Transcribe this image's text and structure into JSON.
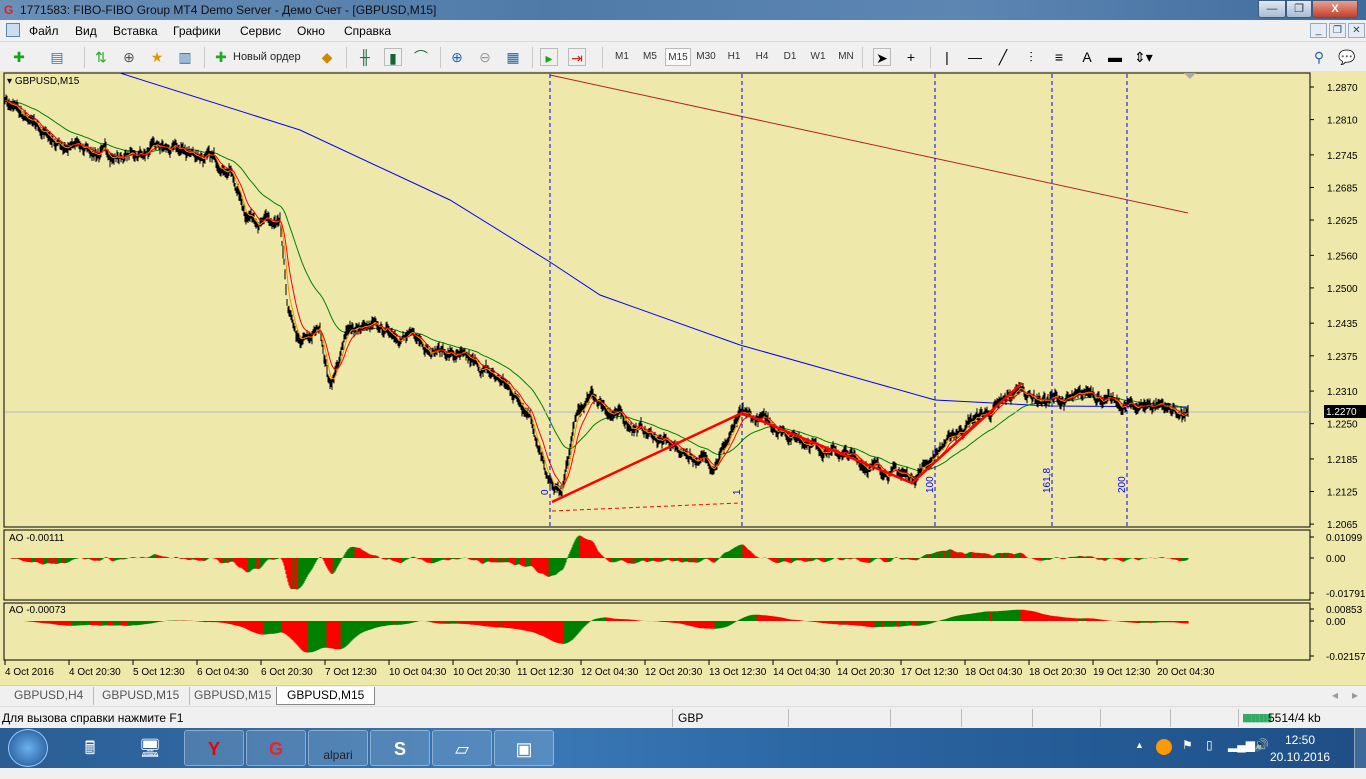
{
  "window": {
    "title": "1771583: FIBO-FIBO Group MT4 Demo Server - Демо Счет - [GBPUSD,M15]",
    "minimize": "—",
    "restore": "❐",
    "close": "X"
  },
  "menu": {
    "items": [
      "Файл",
      "Вид",
      "Вставка",
      "Графики",
      "Сервис",
      "Окно",
      "Справка"
    ]
  },
  "toolbar": {
    "new_order": "Новый ордер",
    "timeframes": [
      "M1",
      "M5",
      "M15",
      "M30",
      "H1",
      "H4",
      "D1",
      "W1",
      "MN"
    ],
    "selected_timeframe": "M15"
  },
  "chart": {
    "symbol_label": "GBPUSD,M15",
    "current_price": "1.2270",
    "ao1_label": "AO -0.00111",
    "ao2_label": "AO -0.00073",
    "ao1_axis": [
      "0.01099",
      "0.00",
      "-0.01791"
    ],
    "ao2_axis": [
      "0.00853",
      "0.00",
      "-0.02157"
    ],
    "fibo_labels": [
      "0",
      "1",
      "100",
      "161,8",
      "200"
    ],
    "colors": {
      "background": "#eee8aa",
      "bull_ao": "#008000",
      "bear_ao": "#ff0000",
      "ma_slow": "#0000ff",
      "ma_mid": "#008000",
      "ma_fast": "#ff0000",
      "zigzag": "#ff0000",
      "fibo_lines": "#0000ff"
    }
  },
  "chart_data": {
    "type": "candlestick",
    "price_ticks": [
      "1.2870",
      "1.2810",
      "1.2745",
      "1.2685",
      "1.2625",
      "1.2560",
      "1.2500",
      "1.2435",
      "1.2375",
      "1.2310",
      "1.2250",
      "1.2185",
      "1.2125",
      "1.2065"
    ],
    "time_ticks": [
      "4 Oct 2016",
      "4 Oct 20:30",
      "5 Oct 12:30",
      "6 Oct 04:30",
      "6 Oct 20:30",
      "7 Oct 12:30",
      "10 Oct 04:30",
      "10 Oct 20:30",
      "11 Oct 12:30",
      "12 Oct 04:30",
      "12 Oct 20:30",
      "13 Oct 12:30",
      "14 Oct 04:30",
      "14 Oct 20:30",
      "17 Oct 12:30",
      "18 Oct 04:30",
      "18 Oct 20:30",
      "19 Oct 12:30",
      "20 Oct 04:30"
    ],
    "last_price": 1.227
  },
  "tabs": [
    "GBPUSD,H4",
    "GBPUSD,M15",
    "GBPUSD,M15",
    "GBPUSD,M15"
  ],
  "active_tab": 3,
  "status": {
    "help": "Для вызова справки нажмите F1",
    "profile": "GBP",
    "traffic": "5514/4 kb"
  },
  "taskbar": {
    "time": "12:50",
    "date": "20.10.2016",
    "apps": [
      "calculator",
      "computer-search",
      "yandex",
      "fibo-group",
      "alpari",
      "skype",
      "notepad",
      "photo-viewer"
    ],
    "alpari_label": "alpari"
  }
}
